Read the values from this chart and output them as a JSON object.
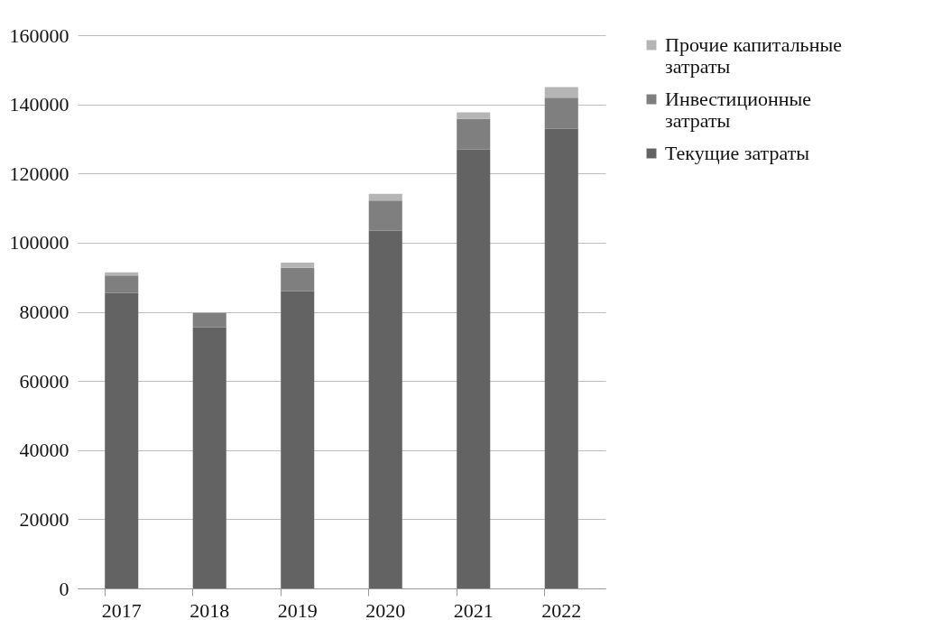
{
  "chart_data": {
    "type": "bar",
    "stacked": true,
    "categories": [
      "2017",
      "2018",
      "2019",
      "2020",
      "2021",
      "2022"
    ],
    "series": [
      {
        "name": "Текущие затраты",
        "color": "#636363",
        "values": [
          85500,
          75500,
          86000,
          103400,
          126900,
          132900
        ]
      },
      {
        "name": "Инвестиционные затраты",
        "color": "#7f7f7f",
        "values": [
          5000,
          4200,
          6700,
          8800,
          8900,
          9000
        ]
      },
      {
        "name": "Прочие капитальные затраты",
        "color": "#b5b5b5",
        "values": [
          900,
          null,
          1500,
          1900,
          1900,
          3100
        ]
      }
    ],
    "ylim": [
      0,
      160000
    ],
    "yticks": [
      0,
      20000,
      40000,
      60000,
      80000,
      100000,
      120000,
      140000,
      160000
    ],
    "grid": "y",
    "legend": "right"
  }
}
